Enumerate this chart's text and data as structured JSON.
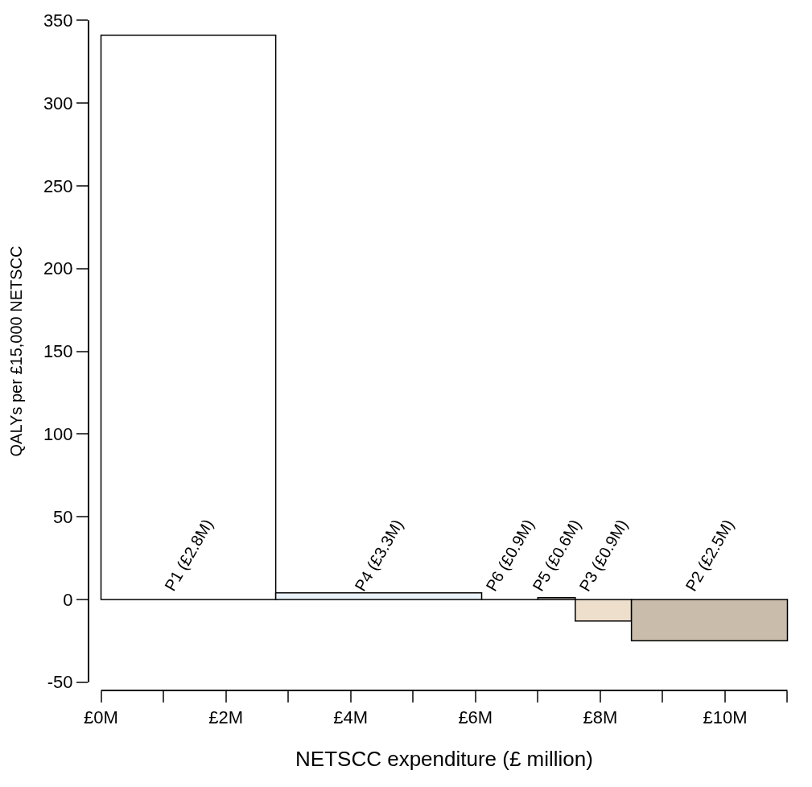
{
  "chart_data": {
    "type": "histogram",
    "xlabel": "NETSCC expenditure (£ million)",
    "ylabel": "QALYs per £15,000 NETSCC",
    "bins": [
      0,
      2.8,
      6.1,
      7.0,
      7.6,
      8.5,
      11.0
    ],
    "values": [
      341,
      4,
      0,
      1,
      -13,
      -25
    ],
    "colors": [
      "#ffffff",
      "#eaf2fa",
      "#000000",
      "#d8d0c4",
      "#eddfcb",
      "#c9bcab"
    ],
    "annotations": [
      {
        "text": "P1 (£2.8M)",
        "x": 1.4,
        "y": 0
      },
      {
        "text": "P4 (£3.3M)",
        "x": 4.45,
        "y": 0
      },
      {
        "text": "P6 (£0.9M)",
        "x": 6.55,
        "y": 0
      },
      {
        "text": "P5 (£0.6M)",
        "x": 7.3,
        "y": 0
      },
      {
        "text": "P3 (£0.9M)",
        "x": 8.05,
        "y": 0
      },
      {
        "text": "P2 (£2.5M)",
        "x": 9.75,
        "y": 0
      }
    ],
    "xlim": [
      0,
      11
    ],
    "xticks": [
      {
        "value": 0,
        "label": "£0M"
      },
      {
        "value": 1,
        "label": null
      },
      {
        "value": 2,
        "label": "£2M"
      },
      {
        "value": 3,
        "label": null
      },
      {
        "value": 4,
        "label": "£4M"
      },
      {
        "value": 5,
        "label": null
      },
      {
        "value": 6,
        "label": "£6M"
      },
      {
        "value": 7,
        "label": null
      },
      {
        "value": 8,
        "label": "£8M"
      },
      {
        "value": 9,
        "label": null
      },
      {
        "value": 10,
        "label": "£10M"
      },
      {
        "value": 11,
        "label": null
      }
    ],
    "ylim": [
      -50,
      350
    ],
    "yticks": [
      -50,
      0,
      50,
      100,
      150,
      200,
      250,
      300,
      350
    ],
    "grid": false
  }
}
